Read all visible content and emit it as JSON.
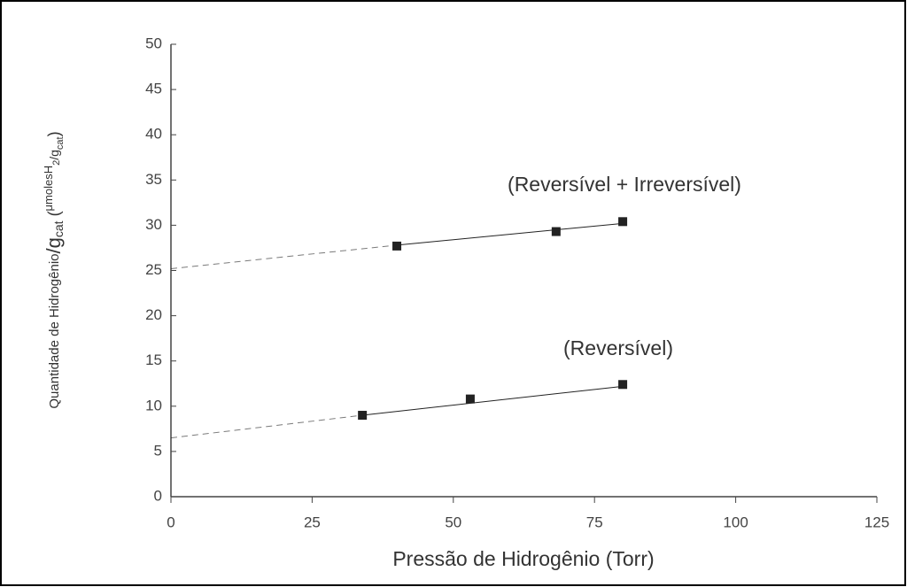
{
  "chart_data": {
    "type": "scatter",
    "xlabel": "Pressão de Hidrogênio (Torr)",
    "ylabel": [
      "Quantidade de Hidrogênio",
      "/g",
      "cat",
      " (",
      "μmolesH",
      "2",
      "/g",
      "cat",
      ")"
    ],
    "xlim": [
      0,
      125
    ],
    "xticks": [
      0,
      25,
      50,
      75,
      100,
      125
    ],
    "ylim": [
      0,
      50
    ],
    "yticks": [
      0,
      5,
      10,
      15,
      20,
      25,
      30,
      35,
      40,
      45,
      50
    ],
    "series": [
      {
        "name": "(Reversível + Irreversível)",
        "color": "#222222",
        "x": [
          40,
          68.2,
          80
        ],
        "values": [
          27.7,
          29.3,
          30.4
        ],
        "line_x": [
          0,
          40,
          80
        ],
        "line_y": [
          25.2,
          27.8,
          30.2
        ]
      },
      {
        "name": "(Reversível)",
        "color": "#222222",
        "x": [
          33.9,
          53,
          80
        ],
        "values": [
          9,
          10.8,
          12.4
        ],
        "line_x": [
          0,
          33.9,
          80
        ],
        "line_y": [
          6.5,
          9,
          12.2
        ]
      }
    ]
  }
}
